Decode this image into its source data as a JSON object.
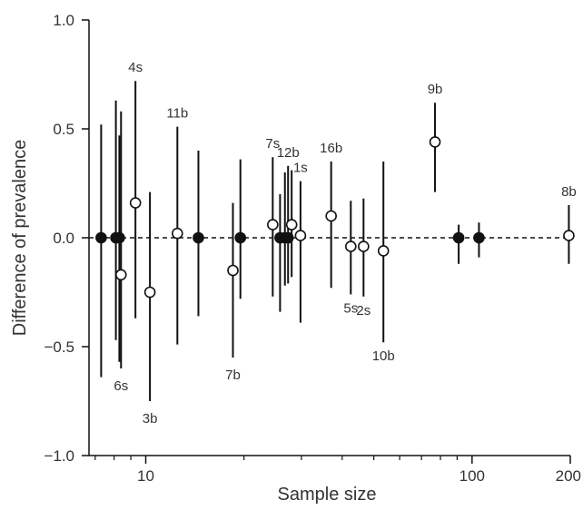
{
  "chart_data": {
    "type": "scatter",
    "title": "",
    "xlabel": "Sample size",
    "ylabel": "Difference of prevalence",
    "x_scale": "log",
    "xlim": [
      6.7,
      200
    ],
    "ylim": [
      -1.0,
      1.0
    ],
    "x_ticks": [
      {
        "value": 10,
        "label": "10"
      },
      {
        "value": 100,
        "label": "100"
      },
      {
        "value": 200,
        "label": "200"
      }
    ],
    "y_ticks": [
      {
        "value": 1.0,
        "label": "1.0"
      },
      {
        "value": 0.5,
        "label": "0.5"
      },
      {
        "value": 0.0,
        "label": "0.0"
      },
      {
        "value": -0.5,
        "label": "−0.5"
      },
      {
        "value": -1.0,
        "label": "−1.0"
      }
    ],
    "reference_line": {
      "y": 0,
      "style": "dashed"
    },
    "grid": false,
    "legend": "none",
    "marker_colors": {
      "filled": "#111111",
      "open": "#ffffff",
      "stroke": "#111111"
    },
    "points": [
      {
        "x": 7.3,
        "y": 0.0,
        "low": -0.64,
        "high": 0.52,
        "filled": true,
        "label": ""
      },
      {
        "x": 8.1,
        "y": 0.0,
        "low": -0.47,
        "high": 0.63,
        "filled": true,
        "label": ""
      },
      {
        "x": 8.3,
        "y": 0.0,
        "low": -0.57,
        "high": 0.47,
        "filled": true,
        "label": ""
      },
      {
        "x": 8.4,
        "y": -0.17,
        "low": -0.6,
        "high": 0.58,
        "filled": false,
        "label": "6s"
      },
      {
        "x": 9.3,
        "y": 0.16,
        "low": -0.37,
        "high": 0.72,
        "filled": false,
        "label": "4s"
      },
      {
        "x": 10.3,
        "y": -0.25,
        "low": -0.75,
        "high": 0.21,
        "filled": false,
        "label": "3b"
      },
      {
        "x": 12.5,
        "y": 0.02,
        "low": -0.49,
        "high": 0.51,
        "filled": false,
        "label": "11b"
      },
      {
        "x": 14.5,
        "y": 0.0,
        "low": -0.36,
        "high": 0.4,
        "filled": true,
        "label": ""
      },
      {
        "x": 18.5,
        "y": -0.15,
        "low": -0.55,
        "high": 0.16,
        "filled": false,
        "label": "7b"
      },
      {
        "x": 19.5,
        "y": 0.0,
        "low": -0.28,
        "high": 0.36,
        "filled": true,
        "label": ""
      },
      {
        "x": 24.5,
        "y": 0.06,
        "low": -0.27,
        "high": 0.37,
        "filled": false,
        "label": "7s"
      },
      {
        "x": 25.8,
        "y": 0.0,
        "low": -0.34,
        "high": 0.2,
        "filled": true,
        "label": ""
      },
      {
        "x": 26.7,
        "y": 0.0,
        "low": -0.22,
        "high": 0.3,
        "filled": true,
        "label": ""
      },
      {
        "x": 27.3,
        "y": 0.0,
        "low": -0.21,
        "high": 0.33,
        "filled": true,
        "label": "12b"
      },
      {
        "x": 28.0,
        "y": 0.06,
        "low": -0.18,
        "high": 0.31,
        "filled": false,
        "label": ""
      },
      {
        "x": 29.8,
        "y": 0.01,
        "low": -0.39,
        "high": 0.26,
        "filled": false,
        "label": "1s"
      },
      {
        "x": 37.0,
        "y": 0.1,
        "low": -0.23,
        "high": 0.35,
        "filled": false,
        "label": "16b"
      },
      {
        "x": 42.5,
        "y": -0.04,
        "low": -0.26,
        "high": 0.17,
        "filled": false,
        "label": "5s"
      },
      {
        "x": 46.5,
        "y": -0.04,
        "low": -0.27,
        "high": 0.18,
        "filled": false,
        "label": "2s"
      },
      {
        "x": 53.5,
        "y": -0.06,
        "low": -0.48,
        "high": 0.35,
        "filled": false,
        "label": "10b"
      },
      {
        "x": 77.0,
        "y": 0.44,
        "low": 0.21,
        "high": 0.62,
        "filled": false,
        "label": "9b"
      },
      {
        "x": 91.0,
        "y": 0.0,
        "low": -0.12,
        "high": 0.06,
        "filled": true,
        "label": ""
      },
      {
        "x": 105.0,
        "y": 0.0,
        "low": -0.09,
        "high": 0.07,
        "filled": true,
        "label": ""
      },
      {
        "x": 198.0,
        "y": 0.01,
        "low": -0.12,
        "high": 0.15,
        "filled": false,
        "label": "8b"
      }
    ]
  }
}
